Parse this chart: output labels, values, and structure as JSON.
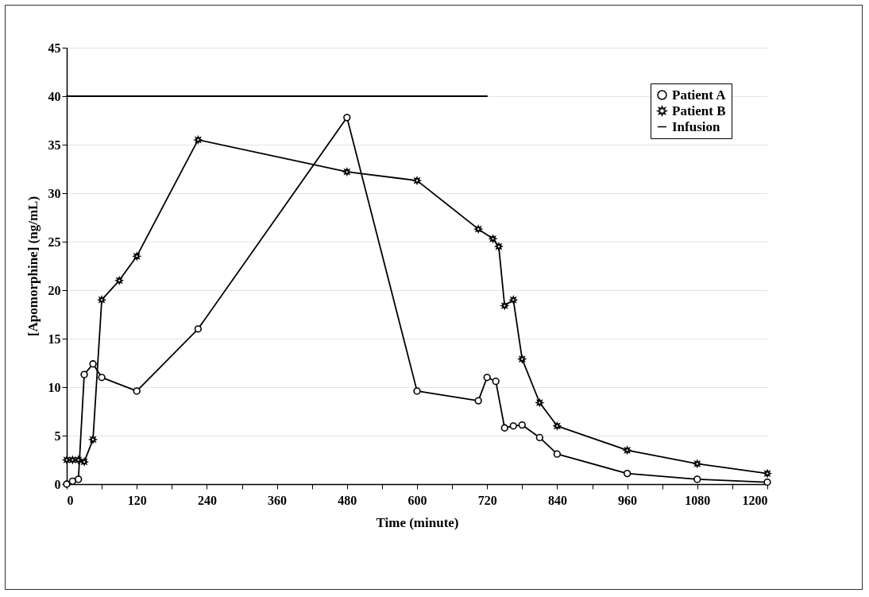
{
  "chart_data": {
    "type": "line",
    "xlabel": "Time (minute)",
    "ylabel": "[Apomorphine] (ng/mL)",
    "series": [
      {
        "name": "Patient A",
        "color": "#000000",
        "marker": "circle",
        "x": [
          0,
          10,
          20,
          30,
          45,
          60,
          120,
          225,
          480,
          600,
          705,
          720,
          735,
          750,
          765,
          780,
          810,
          840,
          960,
          1080,
          1200
        ],
        "values": [
          0,
          0.3,
          0.5,
          11.3,
          12.4,
          11,
          9.6,
          16,
          37.8,
          9.6,
          8.6,
          11,
          10.6,
          5.8,
          6,
          6.1,
          4.8,
          3.1,
          1.1,
          0.5,
          0.2
        ]
      },
      {
        "name": "Patient B",
        "color": "#000000",
        "marker": "star",
        "x": [
          0,
          10,
          20,
          30,
          45,
          60,
          90,
          120,
          225,
          480,
          600,
          705,
          730,
          740,
          750,
          765,
          780,
          810,
          840,
          960,
          1080,
          1200
        ],
        "values": [
          2.5,
          2.5,
          2.5,
          2.3,
          4.6,
          19,
          21,
          23.5,
          35.5,
          32.2,
          31.3,
          26.3,
          25.3,
          24.5,
          18.4,
          19,
          12.9,
          8.4,
          6,
          3.5,
          2.1,
          1.1
        ]
      },
      {
        "name": "Infusion",
        "color": "#000000",
        "marker": "none",
        "x": [
          0,
          720
        ],
        "values": [
          40,
          40
        ]
      }
    ],
    "xlim": [
      0,
      1200
    ],
    "xticks": [
      0,
      {
        "value": 60,
        "label": null
      },
      120,
      {
        "value": 180,
        "label": null
      },
      240,
      {
        "value": 300,
        "label": null
      },
      360,
      {
        "value": 420,
        "label": null
      },
      480,
      {
        "value": 540,
        "label": null
      },
      600,
      {
        "value": 660,
        "label": null
      },
      720,
      {
        "value": 780,
        "label": null
      },
      840,
      {
        "value": 900,
        "label": null
      },
      960,
      {
        "value": 1020,
        "label": null
      },
      1080,
      {
        "value": 1140,
        "label": null
      },
      1200
    ],
    "ylim": [
      0,
      45
    ],
    "yticks": [
      0,
      5,
      10,
      15,
      20,
      25,
      30,
      35,
      40,
      45
    ],
    "grid": "y",
    "legend": "top right"
  }
}
